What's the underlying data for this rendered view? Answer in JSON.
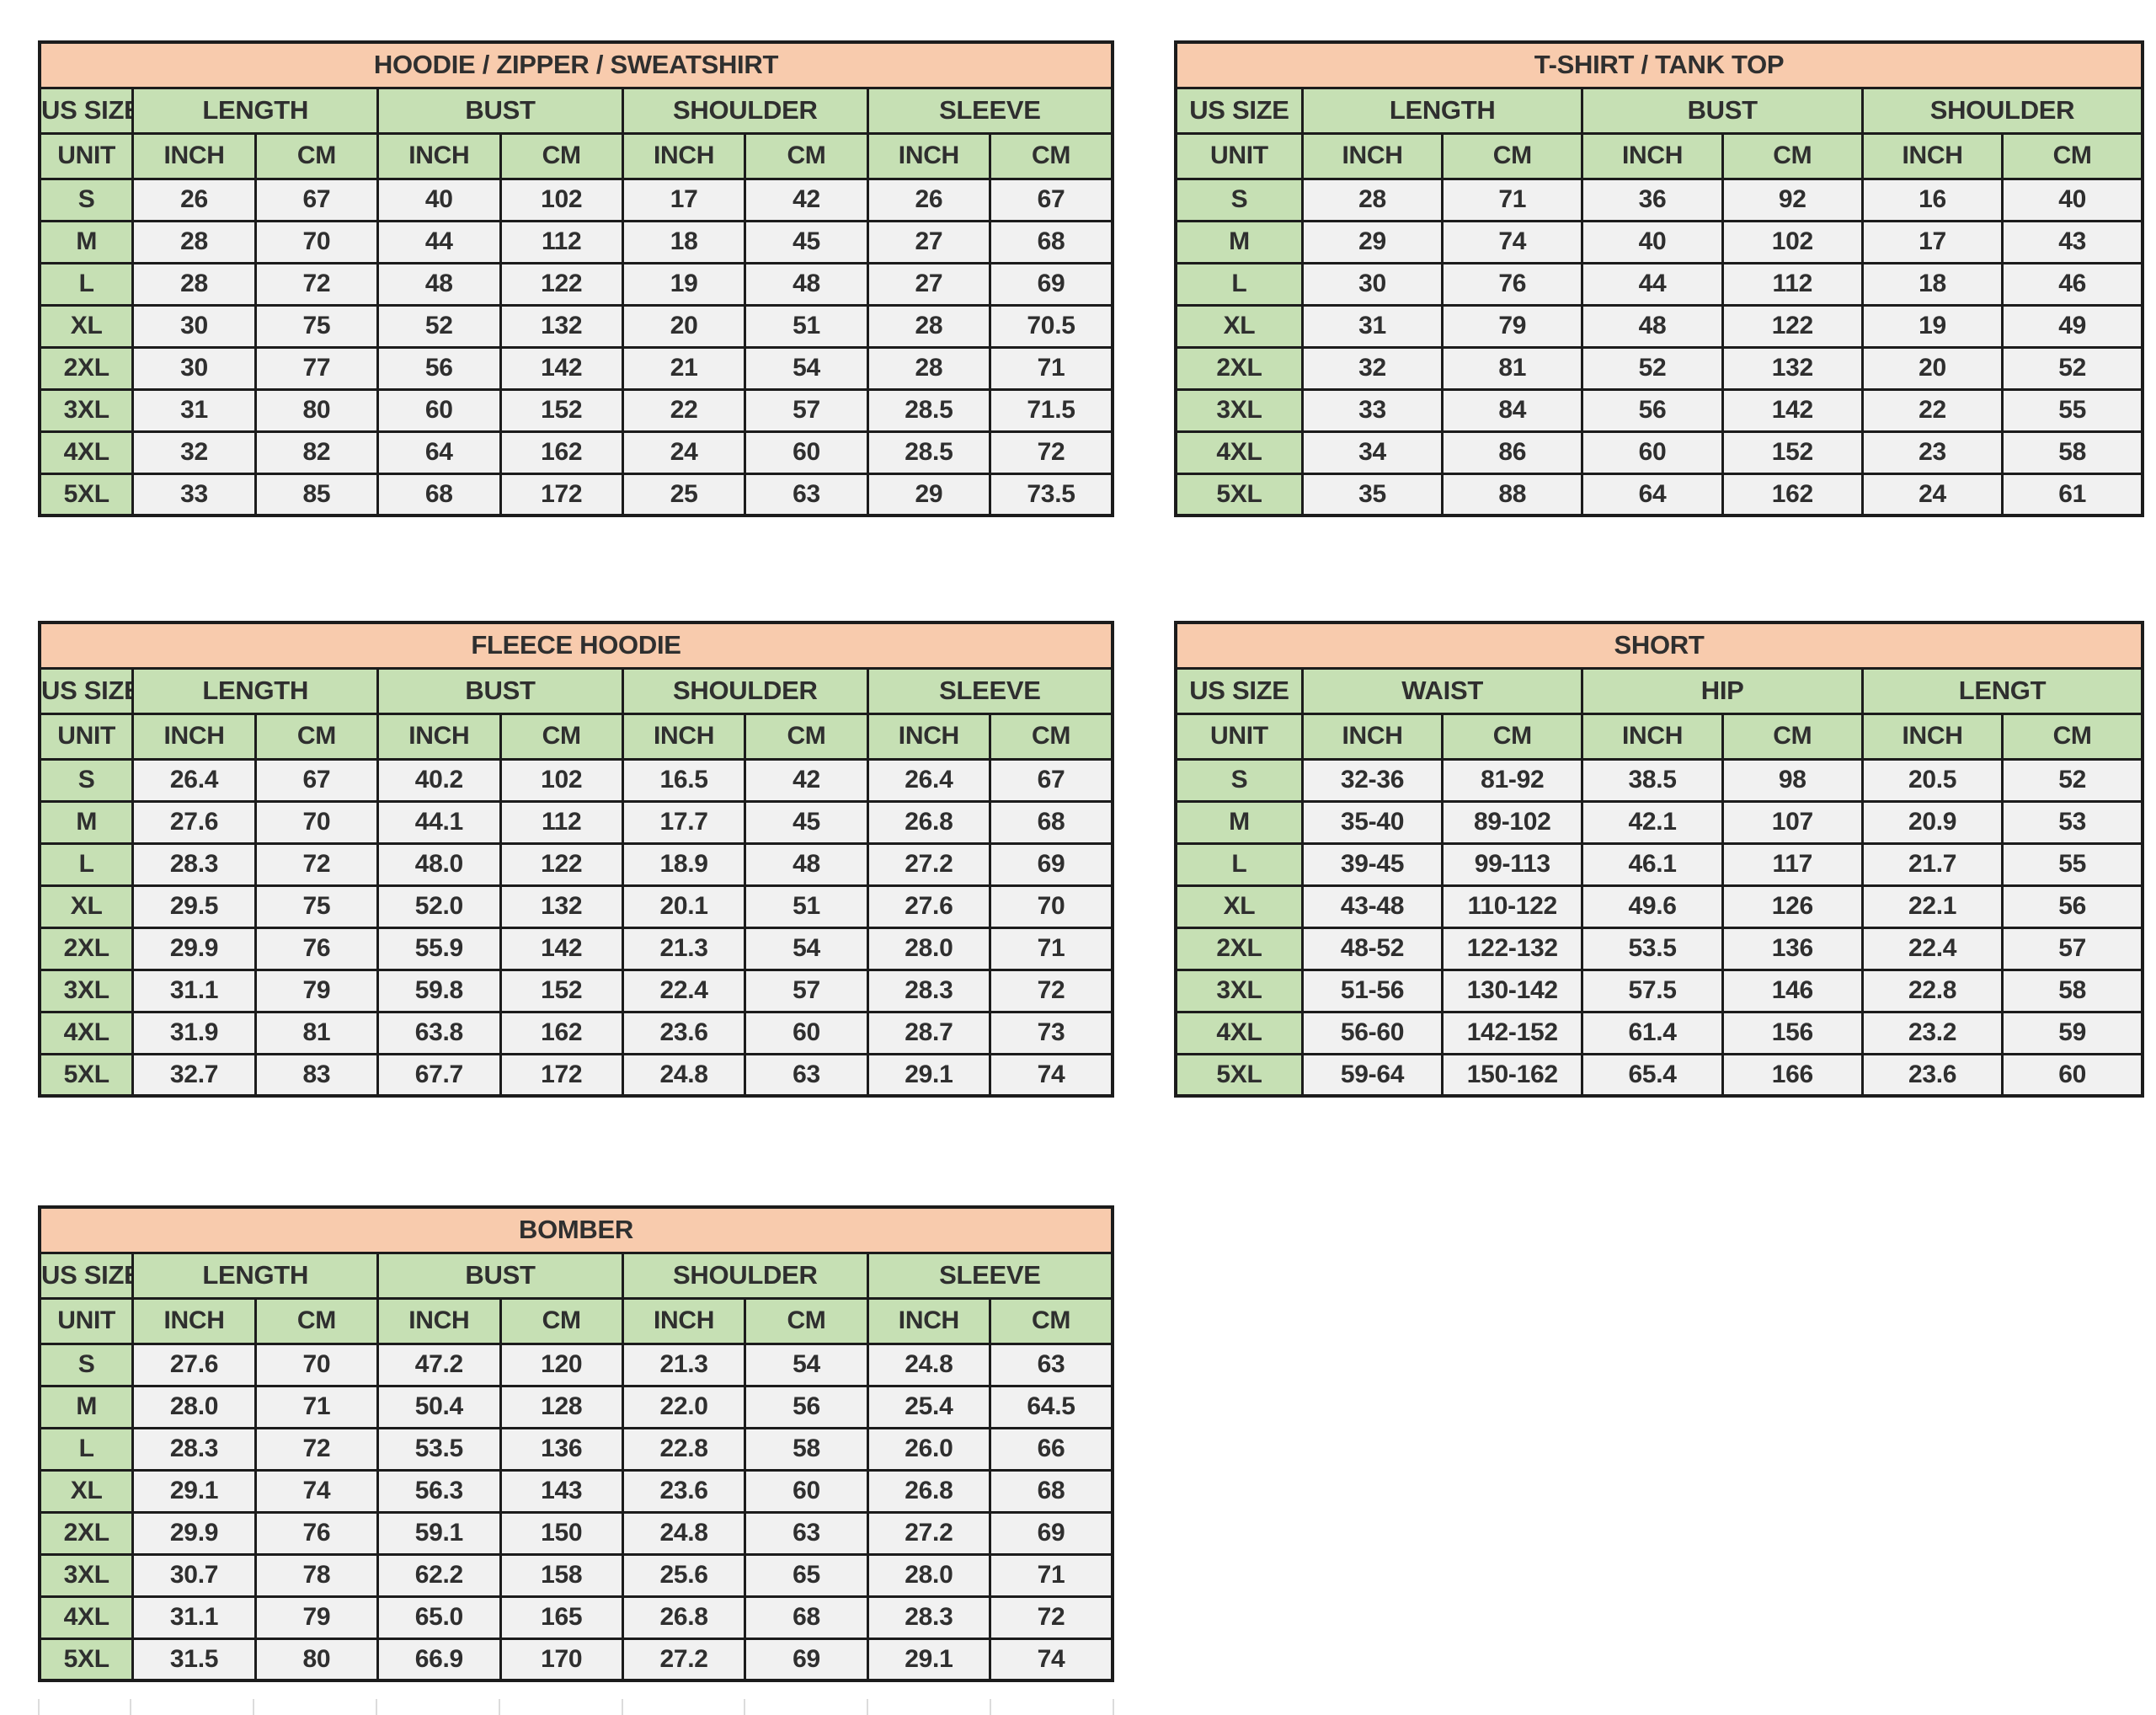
{
  "page": {
    "background": "#ffffff"
  },
  "colors": {
    "title_bg": "#f8cbad",
    "header_bg": "#c6e0b4",
    "cell_bg": "#f1f1f1",
    "border": "#1c1c1c",
    "text": "#2f2f2f"
  },
  "tables": [
    {
      "id": "hoodie",
      "title": "HOODIE / ZIPPER / SWEATSHIRT",
      "size_column_label": "US SIZE",
      "unit_label": "UNIT",
      "groups": [
        {
          "label": "LENGTH",
          "units": [
            "INCH",
            "CM"
          ]
        },
        {
          "label": "BUST",
          "units": [
            "INCH",
            "CM"
          ]
        },
        {
          "label": "SHOULDER",
          "units": [
            "INCH",
            "CM"
          ]
        },
        {
          "label": "SLEEVE",
          "units": [
            "INCH",
            "CM"
          ]
        }
      ],
      "rows": [
        {
          "size": "S",
          "values": [
            "26",
            "67",
            "40",
            "102",
            "17",
            "42",
            "26",
            "67"
          ]
        },
        {
          "size": "M",
          "values": [
            "28",
            "70",
            "44",
            "112",
            "18",
            "45",
            "27",
            "68"
          ]
        },
        {
          "size": "L",
          "values": [
            "28",
            "72",
            "48",
            "122",
            "19",
            "48",
            "27",
            "69"
          ]
        },
        {
          "size": "XL",
          "values": [
            "30",
            "75",
            "52",
            "132",
            "20",
            "51",
            "28",
            "70.5"
          ]
        },
        {
          "size": "2XL",
          "values": [
            "30",
            "77",
            "56",
            "142",
            "21",
            "54",
            "28",
            "71"
          ]
        },
        {
          "size": "3XL",
          "values": [
            "31",
            "80",
            "60",
            "152",
            "22",
            "57",
            "28.5",
            "71.5"
          ]
        },
        {
          "size": "4XL",
          "values": [
            "32",
            "82",
            "64",
            "162",
            "24",
            "60",
            "28.5",
            "72"
          ]
        },
        {
          "size": "5XL",
          "values": [
            "33",
            "85",
            "68",
            "172",
            "25",
            "63",
            "29",
            "73.5"
          ]
        }
      ]
    },
    {
      "id": "tshirt",
      "title": "T-SHIRT / TANK TOP",
      "size_column_label": "US SIZE",
      "unit_label": "UNIT",
      "groups": [
        {
          "label": "LENGTH",
          "units": [
            "INCH",
            "CM"
          ]
        },
        {
          "label": "BUST",
          "units": [
            "INCH",
            "CM"
          ]
        },
        {
          "label": "SHOULDER",
          "units": [
            "INCH",
            "CM"
          ]
        }
      ],
      "rows": [
        {
          "size": "S",
          "values": [
            "28",
            "71",
            "36",
            "92",
            "16",
            "40"
          ]
        },
        {
          "size": "M",
          "values": [
            "29",
            "74",
            "40",
            "102",
            "17",
            "43"
          ]
        },
        {
          "size": "L",
          "values": [
            "30",
            "76",
            "44",
            "112",
            "18",
            "46"
          ]
        },
        {
          "size": "XL",
          "values": [
            "31",
            "79",
            "48",
            "122",
            "19",
            "49"
          ]
        },
        {
          "size": "2XL",
          "values": [
            "32",
            "81",
            "52",
            "132",
            "20",
            "52"
          ]
        },
        {
          "size": "3XL",
          "values": [
            "33",
            "84",
            "56",
            "142",
            "22",
            "55"
          ]
        },
        {
          "size": "4XL",
          "values": [
            "34",
            "86",
            "60",
            "152",
            "23",
            "58"
          ]
        },
        {
          "size": "5XL",
          "values": [
            "35",
            "88",
            "64",
            "162",
            "24",
            "61"
          ]
        }
      ]
    },
    {
      "id": "fleece",
      "title": "FLEECE HOODIE",
      "size_column_label": "US SIZE",
      "unit_label": "UNIT",
      "groups": [
        {
          "label": "LENGTH",
          "units": [
            "INCH",
            "CM"
          ]
        },
        {
          "label": "BUST",
          "units": [
            "INCH",
            "CM"
          ]
        },
        {
          "label": "SHOULDER",
          "units": [
            "INCH",
            "CM"
          ]
        },
        {
          "label": "SLEEVE",
          "units": [
            "INCH",
            "CM"
          ]
        }
      ],
      "rows": [
        {
          "size": "S",
          "values": [
            "26.4",
            "67",
            "40.2",
            "102",
            "16.5",
            "42",
            "26.4",
            "67"
          ]
        },
        {
          "size": "M",
          "values": [
            "27.6",
            "70",
            "44.1",
            "112",
            "17.7",
            "45",
            "26.8",
            "68"
          ]
        },
        {
          "size": "L",
          "values": [
            "28.3",
            "72",
            "48.0",
            "122",
            "18.9",
            "48",
            "27.2",
            "69"
          ]
        },
        {
          "size": "XL",
          "values": [
            "29.5",
            "75",
            "52.0",
            "132",
            "20.1",
            "51",
            "27.6",
            "70"
          ]
        },
        {
          "size": "2XL",
          "values": [
            "29.9",
            "76",
            "55.9",
            "142",
            "21.3",
            "54",
            "28.0",
            "71"
          ]
        },
        {
          "size": "3XL",
          "values": [
            "31.1",
            "79",
            "59.8",
            "152",
            "22.4",
            "57",
            "28.3",
            "72"
          ]
        },
        {
          "size": "4XL",
          "values": [
            "31.9",
            "81",
            "63.8",
            "162",
            "23.6",
            "60",
            "28.7",
            "73"
          ]
        },
        {
          "size": "5XL",
          "values": [
            "32.7",
            "83",
            "67.7",
            "172",
            "24.8",
            "63",
            "29.1",
            "74"
          ]
        }
      ]
    },
    {
      "id": "short",
      "title": "SHORT",
      "size_column_label": "US SIZE",
      "unit_label": "UNIT",
      "groups": [
        {
          "label": "WAIST",
          "units": [
            "INCH",
            "CM"
          ]
        },
        {
          "label": "HIP",
          "units": [
            "INCH",
            "CM"
          ]
        },
        {
          "label": "LENGT",
          "units": [
            "INCH",
            "CM"
          ]
        }
      ],
      "rows": [
        {
          "size": "S",
          "values": [
            "32-36",
            "81-92",
            "38.5",
            "98",
            "20.5",
            "52"
          ]
        },
        {
          "size": "M",
          "values": [
            "35-40",
            "89-102",
            "42.1",
            "107",
            "20.9",
            "53"
          ]
        },
        {
          "size": "L",
          "values": [
            "39-45",
            "99-113",
            "46.1",
            "117",
            "21.7",
            "55"
          ]
        },
        {
          "size": "XL",
          "values": [
            "43-48",
            "110-122",
            "49.6",
            "126",
            "22.1",
            "56"
          ]
        },
        {
          "size": "2XL",
          "values": [
            "48-52",
            "122-132",
            "53.5",
            "136",
            "22.4",
            "57"
          ]
        },
        {
          "size": "3XL",
          "values": [
            "51-56",
            "130-142",
            "57.5",
            "146",
            "22.8",
            "58"
          ]
        },
        {
          "size": "4XL",
          "values": [
            "56-60",
            "142-152",
            "61.4",
            "156",
            "23.2",
            "59"
          ]
        },
        {
          "size": "5XL",
          "values": [
            "59-64",
            "150-162",
            "65.4",
            "166",
            "23.6",
            "60"
          ]
        }
      ]
    },
    {
      "id": "bomber",
      "title": "BOMBER",
      "size_column_label": "US SIZE",
      "unit_label": "UNIT",
      "groups": [
        {
          "label": "LENGTH",
          "units": [
            "INCH",
            "CM"
          ]
        },
        {
          "label": "BUST",
          "units": [
            "INCH",
            "CM"
          ]
        },
        {
          "label": "SHOULDER",
          "units": [
            "INCH",
            "CM"
          ]
        },
        {
          "label": "SLEEVE",
          "units": [
            "INCH",
            "CM"
          ]
        }
      ],
      "rows": [
        {
          "size": "S",
          "values": [
            "27.6",
            "70",
            "47.2",
            "120",
            "21.3",
            "54",
            "24.8",
            "63"
          ]
        },
        {
          "size": "M",
          "values": [
            "28.0",
            "71",
            "50.4",
            "128",
            "22.0",
            "56",
            "25.4",
            "64.5"
          ]
        },
        {
          "size": "L",
          "values": [
            "28.3",
            "72",
            "53.5",
            "136",
            "22.8",
            "58",
            "26.0",
            "66"
          ]
        },
        {
          "size": "XL",
          "values": [
            "29.1",
            "74",
            "56.3",
            "143",
            "23.6",
            "60",
            "26.8",
            "68"
          ]
        },
        {
          "size": "2XL",
          "values": [
            "29.9",
            "76",
            "59.1",
            "150",
            "24.8",
            "63",
            "27.2",
            "69"
          ]
        },
        {
          "size": "3XL",
          "values": [
            "30.7",
            "78",
            "62.2",
            "158",
            "25.6",
            "65",
            "28.0",
            "71"
          ]
        },
        {
          "size": "4XL",
          "values": [
            "31.1",
            "79",
            "65.0",
            "165",
            "26.8",
            "68",
            "28.3",
            "72"
          ]
        },
        {
          "size": "5XL",
          "values": [
            "31.5",
            "80",
            "66.9",
            "170",
            "27.2",
            "69",
            "29.1",
            "74"
          ]
        }
      ]
    }
  ]
}
